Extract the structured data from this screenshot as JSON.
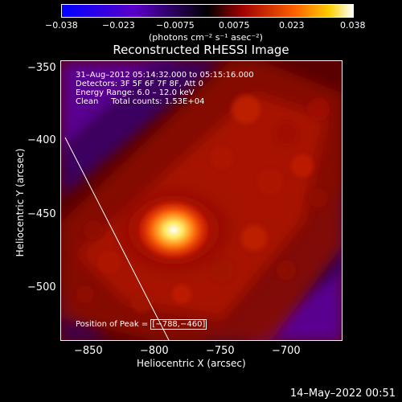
{
  "colorbar": {
    "ticks": [
      "−0.038",
      "−0.023",
      "−0.0075",
      "0.0075",
      "0.023",
      "0.038"
    ],
    "unit": "(photons cm⁻² s⁻¹ asec⁻²)",
    "min": -0.038,
    "max": 0.038,
    "colors": [
      "#0000ff",
      "#5a00c8",
      "#000000",
      "#a00000",
      "#ff6000",
      "#ffffff"
    ]
  },
  "title": "Reconstructed RHESSI Image",
  "annotations": {
    "line1": "31–Aug–2012 05:14:32.000 to 05:15:16.000",
    "line2": "Detectors: 3F 5F 6F 7F 8F, Att 0",
    "line3": "Energy Range: 6.0 – 12.0 keV",
    "line4": "Clean     Total counts: 1.53E+04",
    "peak_label": "Position of Peak =",
    "peak_value": "[−788,−460]"
  },
  "axes": {
    "x_ticks": [
      "−850",
      "−800",
      "−750",
      "−700"
    ],
    "y_ticks": [
      "−350",
      "−400",
      "−450",
      "−500"
    ],
    "x_label": "Heliocentric X (arcsec)",
    "y_label": "Heliocentric Y (arcsec)"
  },
  "footer_date": "14–May–2022 00:51"
}
